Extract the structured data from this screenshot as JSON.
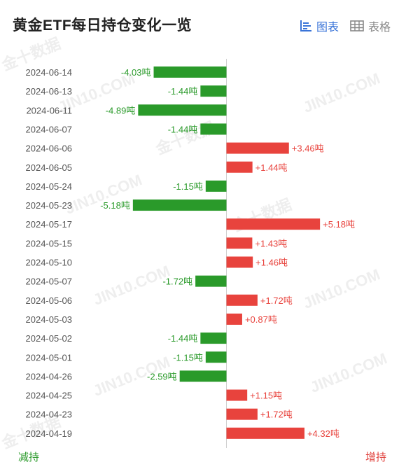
{
  "header": {
    "title": "黄金ETF每日持仓变化一览",
    "chart_tab": "图表",
    "table_tab": "表格"
  },
  "watermarks": [
    "JIN10.COM",
    "金十数据"
  ],
  "legend": {
    "reduce_label": "减持",
    "increase_label": "增持"
  },
  "colors": {
    "reduce": "#2a9a2a",
    "increase": "#e8433d",
    "accent": "#3a74d8"
  },
  "chart_data": {
    "type": "bar",
    "orientation": "horizontal",
    "title": "黄金ETF每日持仓变化一览",
    "unit": "吨",
    "categories": [
      "2024-06-14",
      "2024-06-13",
      "2024-06-11",
      "2024-06-07",
      "2024-06-06",
      "2024-06-05",
      "2024-05-24",
      "2024-05-23",
      "2024-05-17",
      "2024-05-15",
      "2024-05-10",
      "2024-05-07",
      "2024-05-06",
      "2024-05-03",
      "2024-05-02",
      "2024-05-01",
      "2024-04-26",
      "2024-04-25",
      "2024-04-23",
      "2024-04-19"
    ],
    "values": [
      -4.03,
      -1.44,
      -4.89,
      -1.44,
      3.46,
      1.44,
      -1.15,
      -5.18,
      5.18,
      1.43,
      1.46,
      -1.72,
      1.72,
      0.87,
      -1.44,
      -1.15,
      -2.59,
      1.15,
      1.72,
      4.32
    ],
    "labels": [
      "-4.03吨",
      "-1.44吨",
      "-4.89吨",
      "-1.44吨",
      "+3.46吨",
      "+1.44吨",
      "-1.15吨",
      "-5.18吨",
      "+5.18吨",
      "+1.43吨",
      "+1.46吨",
      "-1.72吨",
      "+1.72吨",
      "+0.87吨",
      "-1.44吨",
      "-1.15吨",
      "-2.59吨",
      "+1.15吨",
      "+1.72吨",
      "+4.32吨"
    ],
    "xticks": [
      "−6",
      "−4",
      "−2",
      "0",
      "2",
      "4",
      "6"
    ],
    "xlim": [
      -7,
      7
    ],
    "grid": false
  }
}
